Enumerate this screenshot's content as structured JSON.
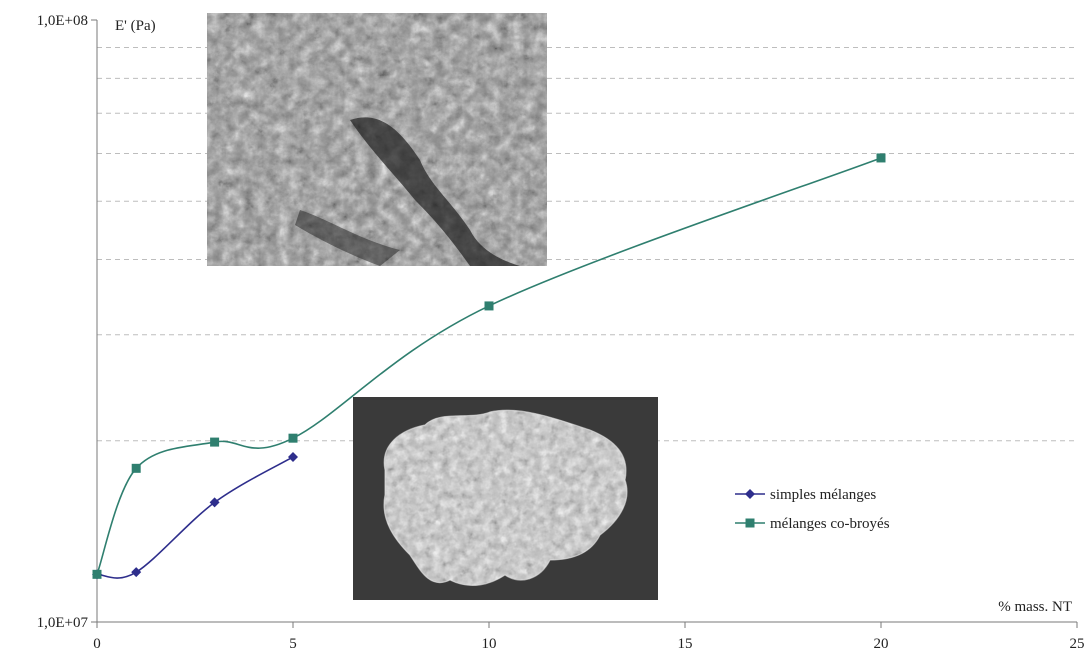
{
  "chart_data": {
    "type": "line",
    "title": "",
    "xlabel": "% mass. NT",
    "ylabel": "E' (Pa)",
    "x_range": [
      0,
      25
    ],
    "x_ticks": [
      0,
      5,
      10,
      15,
      20,
      25
    ],
    "x_tick_labels": [
      "0",
      "5",
      "10",
      "15",
      "20",
      "25"
    ],
    "y_scale": "log",
    "y_range": [
      10000000,
      100000000
    ],
    "y_tick_labels": [
      "1,0E+07",
      "1,0E+08"
    ],
    "grid": "horizontal dashed minor lines",
    "legend_position": "right-middle",
    "series": [
      {
        "name": "simples mélanges",
        "color": "#2e2e8c",
        "marker": "diamond",
        "x": [
          0,
          1,
          3,
          5
        ],
        "y": [
          12000000,
          12100000,
          15800000,
          18800000
        ]
      },
      {
        "name": "mélanges co-broyés",
        "color": "#2f7f6f",
        "marker": "square",
        "x": [
          0,
          1,
          3,
          5,
          10,
          20
        ],
        "y": [
          12000000,
          18000000,
          19900000,
          20200000,
          33500000,
          59000000
        ]
      }
    ]
  },
  "images": [
    {
      "name": "sem-micrograph-fibers"
    },
    {
      "name": "sem-micrograph-particle"
    }
  ]
}
